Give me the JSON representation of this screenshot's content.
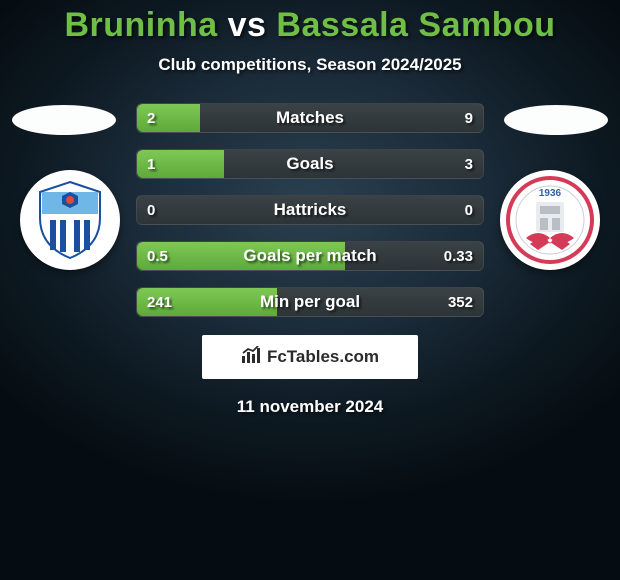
{
  "title": {
    "player1": "Bruninha",
    "vs": "vs",
    "player2": "Bassala Sambou"
  },
  "title_colors": {
    "player1": "#6fbf46",
    "vs": "#ffffff",
    "player2": "#6fbf46"
  },
  "subtitle": "Club competitions, Season 2024/2025",
  "background": "#0c1820",
  "bars": {
    "track_bg": "#33393d",
    "fill_color": "#6fbf46",
    "fill_gradient_top": "#7ec956",
    "fill_gradient_bot": "#5da93a",
    "height": 30,
    "radius": 6,
    "items": [
      {
        "label": "Matches",
        "left": "2",
        "right": "9",
        "fill_pct": 0.182
      },
      {
        "label": "Goals",
        "left": "1",
        "right": "3",
        "fill_pct": 0.25
      },
      {
        "label": "Hattricks",
        "left": "0",
        "right": "0",
        "fill_pct": 0.0
      },
      {
        "label": "Goals per match",
        "left": "0.5",
        "right": "0.33",
        "fill_pct": 0.602
      },
      {
        "label": "Min per goal",
        "left": "241",
        "right": "352",
        "fill_pct": 0.406
      }
    ]
  },
  "watermark": {
    "text": "FcTables.com",
    "icon": "chart-icon"
  },
  "date": "11 november 2024",
  "teams": {
    "left": {
      "name": "Anorthosis",
      "colors": {
        "top": "#6eb7e6",
        "mid": "#ffffff",
        "stripe": "#1b4fa0"
      }
    },
    "right": {
      "name": "ENP",
      "colors": {
        "ring": "#d43b57",
        "inner": "#ffffff",
        "accent": "#2a5fa8"
      }
    }
  },
  "typography": {
    "title_fontsize": 34,
    "subtitle_fontsize": 17,
    "bar_label_fontsize": 17,
    "bar_value_fontsize": 15,
    "date_fontsize": 17
  }
}
